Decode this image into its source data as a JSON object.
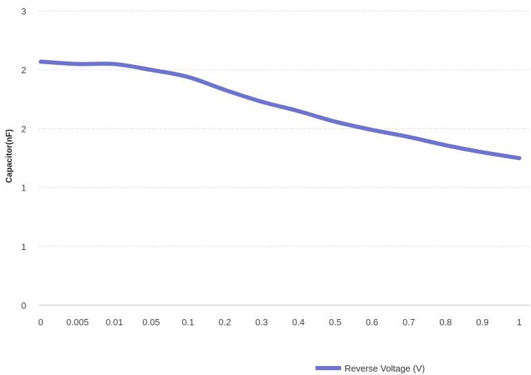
{
  "chart_data": {
    "type": "line",
    "title": "",
    "xlabel": "",
    "ylabel": "Capacitor(nF)",
    "categories": [
      "0",
      "0.005",
      "0.01",
      "0.05",
      "0.1",
      "0.2",
      "0.3",
      "0.4",
      "0.5",
      "0.6",
      "0.7",
      "0.8",
      "0.9",
      "1"
    ],
    "y_tick_labels": [
      "0",
      "1",
      "1",
      "2",
      "2",
      "3"
    ],
    "ylim": [
      0,
      2.5
    ],
    "grid": true,
    "legend_position": "bottom",
    "series": [
      {
        "name": "Reverse Voltage (V)",
        "color": "#6e74cc",
        "values": [
          2.07,
          2.05,
          2.05,
          2.0,
          1.94,
          1.83,
          1.73,
          1.65,
          1.56,
          1.49,
          1.43,
          1.36,
          1.3,
          1.25
        ]
      }
    ]
  }
}
